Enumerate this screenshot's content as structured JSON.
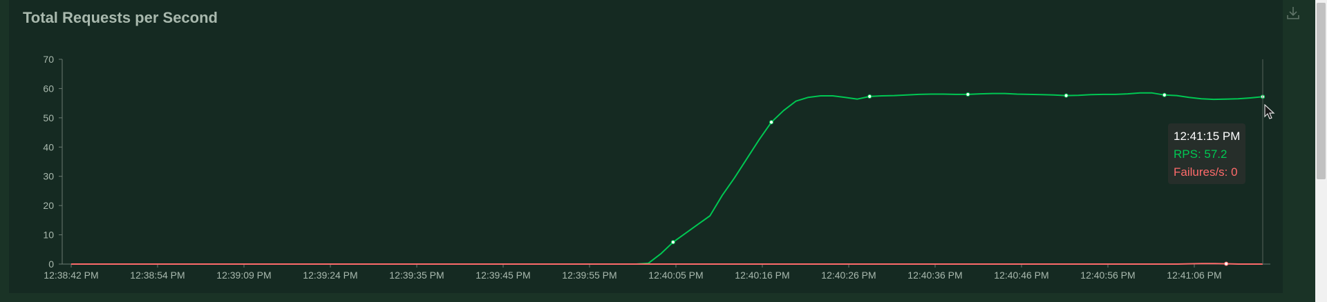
{
  "chart_data": {
    "type": "line",
    "title": "Total Requests per Second",
    "xlabel": "",
    "ylabel": "",
    "ylim": [
      0,
      70
    ],
    "yticks": [
      0,
      10,
      20,
      30,
      40,
      50,
      60,
      70
    ],
    "xtick_labels": [
      "12:38:42 PM",
      "12:38:54 PM",
      "12:39:09 PM",
      "12:39:24 PM",
      "12:39:35 PM",
      "12:39:45 PM",
      "12:39:55 PM",
      "12:40:05 PM",
      "12:40:16 PM",
      "12:40:26 PM",
      "12:40:36 PM",
      "12:40:46 PM",
      "12:40:56 PM",
      "12:41:06 PM"
    ],
    "series": [
      {
        "name": "RPS",
        "color": "#00c853",
        "values": [
          0,
          0,
          0,
          0,
          0,
          0,
          0,
          0,
          0,
          0,
          0,
          0,
          0,
          0,
          0,
          0,
          0,
          0,
          0,
          0,
          0,
          0,
          0,
          0,
          0,
          0,
          0,
          0,
          0,
          0,
          0,
          0,
          0,
          0,
          0,
          0,
          0,
          0,
          0,
          0,
          0,
          0,
          0,
          0,
          0,
          0,
          0,
          0.3,
          3.5,
          7.5,
          10.5,
          13.5,
          16.5,
          23.5,
          29.5,
          36,
          42.5,
          48.5,
          52.5,
          55.7,
          57,
          57.5,
          57.5,
          57,
          56.4,
          57.3,
          57.5,
          57.6,
          57.8,
          58,
          58.1,
          58.1,
          58,
          58,
          58.2,
          58.3,
          58.3,
          58.1,
          58,
          57.9,
          57.8,
          57.6,
          57.7,
          57.9,
          58,
          58,
          58.2,
          58.5,
          58.5,
          57.8,
          57.6,
          57,
          56.5,
          56.3,
          56.4,
          56.5,
          56.8,
          57.2
        ]
      },
      {
        "name": "Failures/s",
        "color": "#ff6b6b",
        "values": [
          0,
          0,
          0,
          0,
          0,
          0,
          0,
          0,
          0,
          0,
          0,
          0,
          0,
          0,
          0,
          0,
          0,
          0,
          0,
          0,
          0,
          0,
          0,
          0,
          0,
          0,
          0,
          0,
          0,
          0,
          0,
          0,
          0,
          0,
          0,
          0,
          0,
          0,
          0,
          0,
          0,
          0,
          0,
          0,
          0,
          0,
          0,
          0,
          0,
          0,
          0,
          0,
          0,
          0,
          0,
          0,
          0,
          0,
          0,
          0,
          0,
          0,
          0,
          0,
          0,
          0,
          0,
          0,
          0,
          0,
          0,
          0,
          0,
          0,
          0,
          0,
          0,
          0,
          0,
          0,
          0,
          0,
          0,
          0,
          0,
          0,
          0,
          0,
          0,
          0,
          0,
          0,
          0.1,
          0.2,
          0.2,
          0.1,
          0,
          0,
          0
        ]
      }
    ],
    "grid": false,
    "legend": "none"
  },
  "tooltip": {
    "time": "12:41:15 PM",
    "rps": "RPS: 57.2",
    "failures": "Failures/s: 0"
  },
  "icons": {
    "download": "download-icon",
    "cursor": "mouse-cursor-icon"
  }
}
